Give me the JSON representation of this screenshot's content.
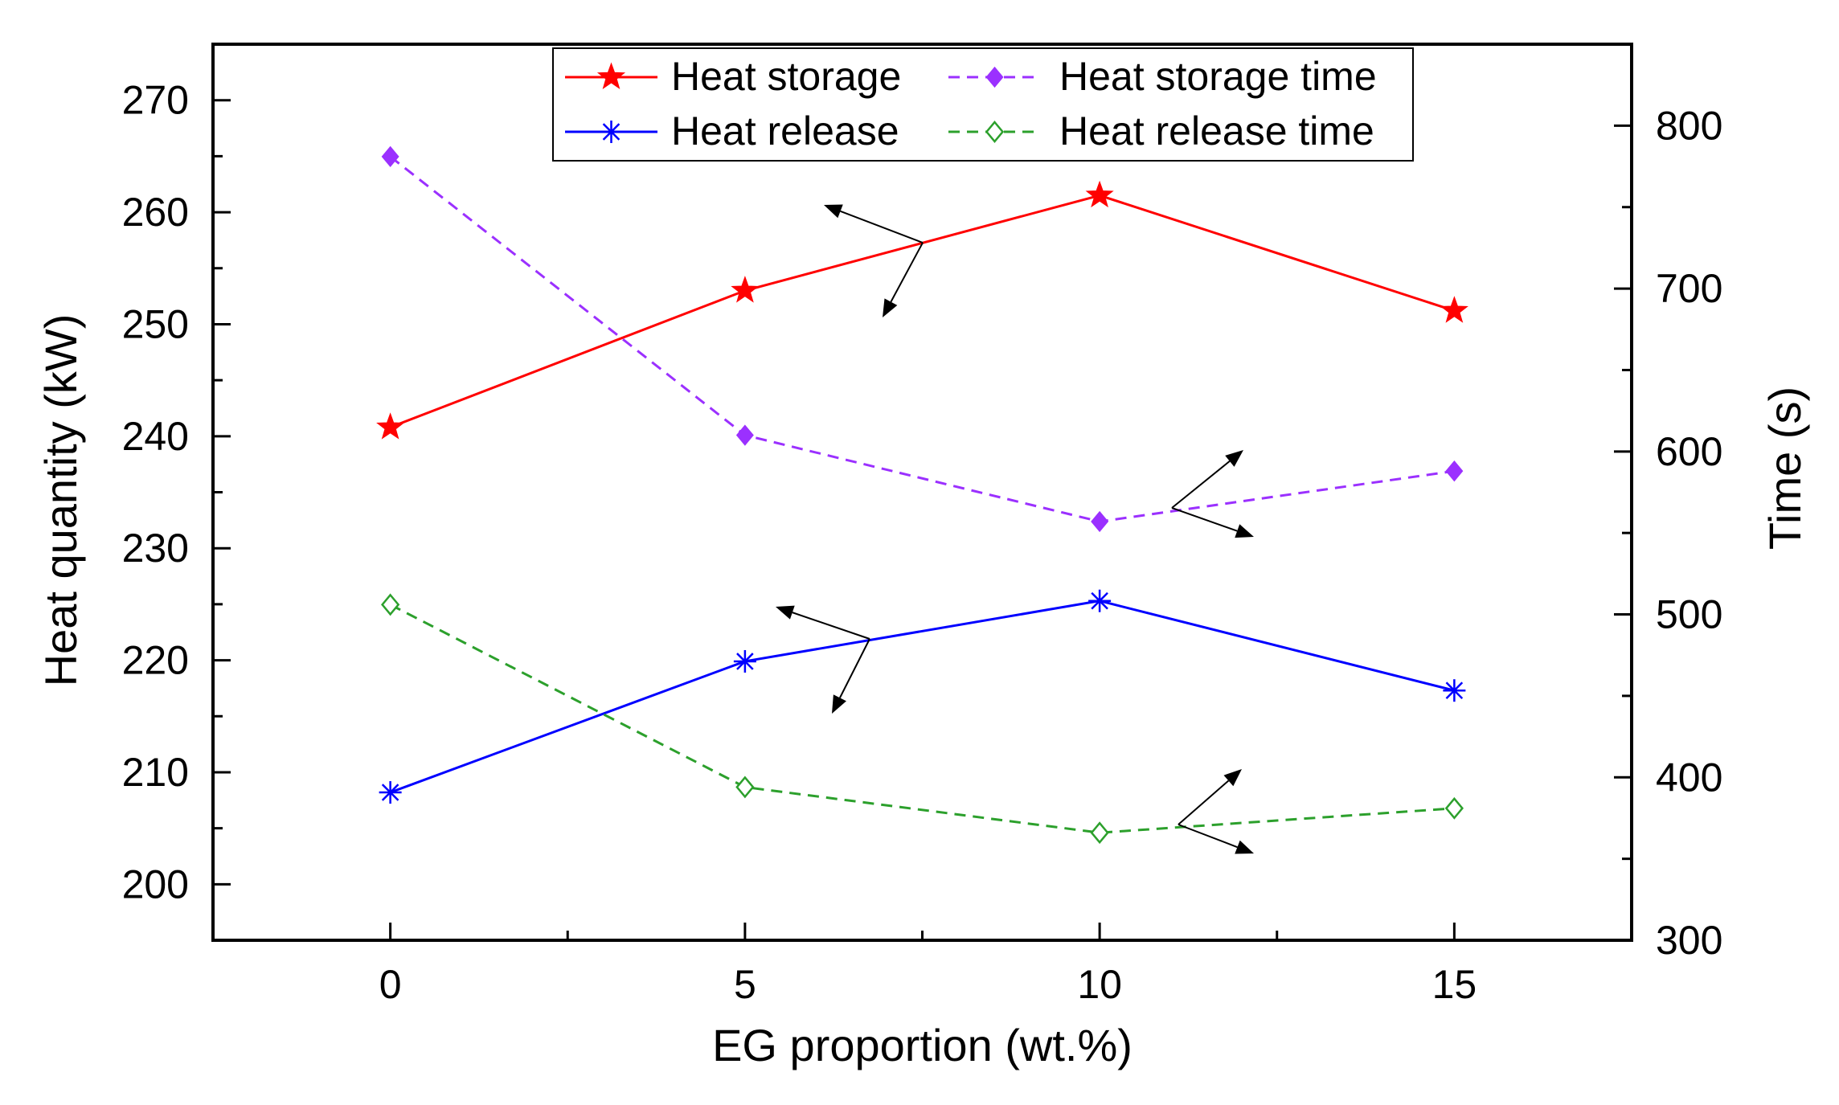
{
  "chart_data": {
    "type": "line",
    "title": "",
    "xlabel": "EG proportion (wt.%)",
    "ylabel_left": "Heat quantity (kW)",
    "ylabel_right": "Time (s)",
    "x": [
      0,
      5,
      10,
      15
    ],
    "xlim": [
      -2.5,
      17.5
    ],
    "x_ticks": [
      "0",
      "5",
      "10",
      "15"
    ],
    "ylim_left": [
      195,
      275
    ],
    "y_ticks_left": [
      "200",
      "210",
      "220",
      "230",
      "240",
      "250",
      "260",
      "270"
    ],
    "ylim_right": [
      300,
      850
    ],
    "y_ticks_right": [
      "300",
      "400",
      "500",
      "600",
      "700",
      "800"
    ],
    "grid": false,
    "legend_position": "top-center",
    "series": [
      {
        "name": "Heat storage",
        "axis": "left",
        "values": [
          240.8,
          253.0,
          261.5,
          251.2
        ],
        "color": "#ff0000",
        "marker": "filled-star",
        "dash": "solid"
      },
      {
        "name": "Heat storage time",
        "axis": "right",
        "values": [
          781,
          610,
          557,
          588
        ],
        "color": "#9b30ff",
        "marker": "filled-diamond",
        "dash": "dashed"
      },
      {
        "name": "Heat release",
        "axis": "left",
        "values": [
          208.2,
          219.9,
          225.3,
          217.3
        ],
        "color": "#0000ff",
        "marker": "asterisk",
        "dash": "solid"
      },
      {
        "name": "Heat release time",
        "axis": "right",
        "values": [
          506,
          394,
          366,
          381
        ],
        "color": "#2ca02c",
        "marker": "open-diamond",
        "dash": "dashed"
      }
    ]
  }
}
